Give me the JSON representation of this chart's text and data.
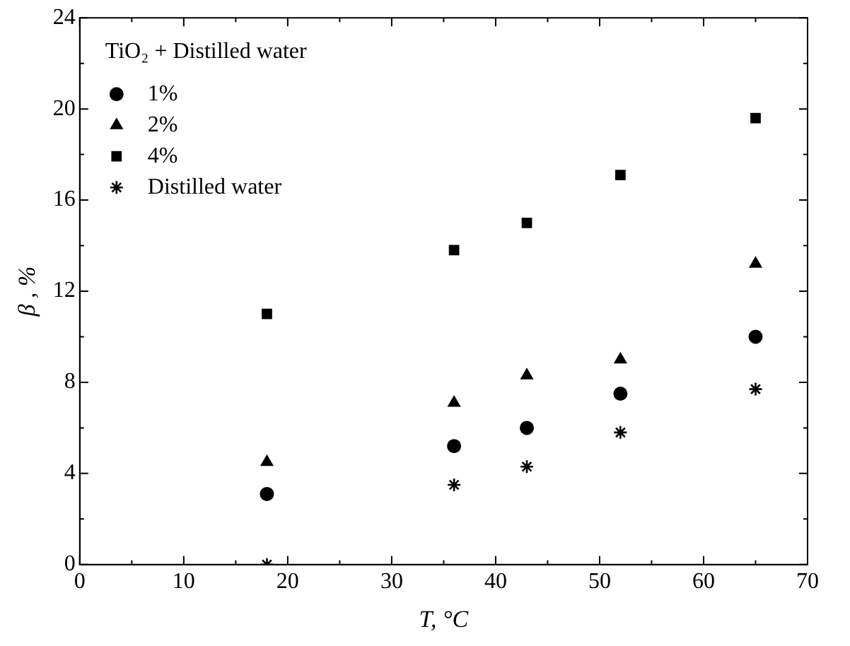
{
  "chart_data": {
    "type": "scatter",
    "xlabel": "T, °C",
    "ylabel": "β , %",
    "legend_title": "TiO₂ + Distilled water",
    "legend": "top left",
    "grid": false,
    "x": [
      18,
      36,
      43,
      52,
      65
    ],
    "xlim": [
      0,
      70
    ],
    "xticks": [
      0,
      {
        "value": 5,
        "label": null
      },
      10,
      {
        "value": 15,
        "label": null
      },
      20,
      {
        "value": 25,
        "label": null
      },
      30,
      {
        "value": 35,
        "label": null
      },
      40,
      {
        "value": 45,
        "label": null
      },
      50,
      {
        "value": 55,
        "label": null
      },
      60,
      {
        "value": 65,
        "label": null
      },
      70
    ],
    "ylim": [
      0,
      24
    ],
    "yticks": [
      0,
      {
        "value": 2,
        "label": null
      },
      4,
      {
        "value": 6,
        "label": null
      },
      8,
      {
        "value": 10,
        "label": null
      },
      12,
      {
        "value": 14,
        "label": null
      },
      16,
      {
        "value": 18,
        "label": null
      },
      20,
      {
        "value": 22,
        "label": null
      },
      24
    ],
    "series": [
      {
        "name": "1%",
        "color": "#000000",
        "marker": "circle",
        "values": [
          3.1,
          5.2,
          6.0,
          7.5,
          10.0
        ]
      },
      {
        "name": "2%",
        "color": "#000000",
        "marker": "triangle",
        "values": [
          4.5,
          7.1,
          8.3,
          9.0,
          13.2
        ]
      },
      {
        "name": "4%",
        "color": "#000000",
        "marker": "square",
        "values": [
          11.0,
          13.8,
          15.0,
          17.1,
          19.6
        ]
      },
      {
        "name": "Distilled water",
        "color": "#000000",
        "marker": "cross",
        "values": [
          0,
          3.5,
          4.3,
          5.8,
          7.7
        ]
      }
    ]
  }
}
